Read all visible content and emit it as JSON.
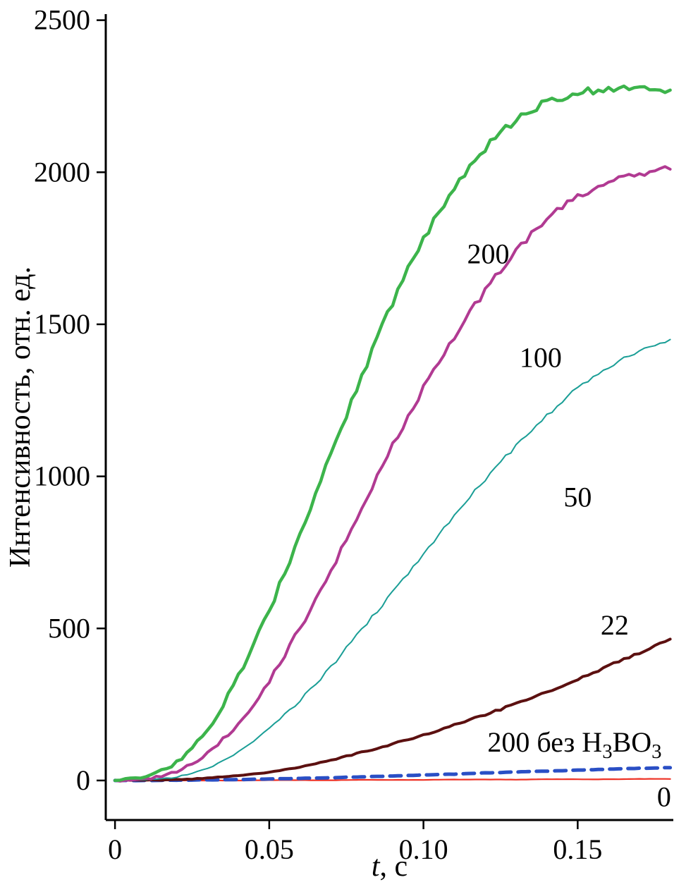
{
  "figure": {
    "background": "#ffffff",
    "axis_color": "#000000"
  },
  "chart_data": {
    "type": "line",
    "title": "",
    "xlabel": "t, с",
    "xlabel_parts": [
      {
        "t": "t",
        "italic": true
      },
      {
        "t": ", с"
      }
    ],
    "ylabel": "Интенсивность, отн. ед.",
    "xlim": [
      -0.003,
      0.181
    ],
    "ylim": [
      -130,
      2520
    ],
    "xticks": [
      0,
      0.05,
      0.1,
      0.15
    ],
    "xtick_labels": [
      "0",
      "0.05",
      "0.10",
      "0.15"
    ],
    "yticks": [
      0,
      500,
      1000,
      1500,
      2000,
      2500
    ],
    "ytick_labels": [
      "0",
      "500",
      "1000",
      "1500",
      "2000",
      "2500"
    ],
    "grid": false,
    "legend_position": "inline-labels",
    "x": [
      0,
      0.01,
      0.02,
      0.03,
      0.04,
      0.05,
      0.06,
      0.07,
      0.08,
      0.09,
      0.1,
      0.11,
      0.12,
      0.13,
      0.14,
      0.15,
      0.16,
      0.17,
      0.18
    ],
    "series": [
      {
        "name": "0",
        "color": "#ee3124",
        "width": 2.2,
        "dash": null,
        "noise": 1,
        "y": [
          0,
          0,
          0,
          0,
          0,
          1,
          1,
          1,
          2,
          2,
          2,
          3,
          3,
          3,
          4,
          4,
          4,
          5,
          5
        ]
      },
      {
        "name": "200 без H3BO3",
        "color": "#2a4fc5",
        "width": 5,
        "dash": "16 10",
        "noise": 1.5,
        "y": [
          0,
          0,
          1,
          2,
          3,
          5,
          7,
          9,
          12,
          15,
          18,
          21,
          25,
          28,
          31,
          34,
          37,
          40,
          42
        ]
      },
      {
        "name": "22",
        "color": "#5c1010",
        "width": 4,
        "dash": null,
        "noise": 4,
        "y": [
          0,
          1,
          3,
          8,
          16,
          28,
          45,
          67,
          93,
          120,
          150,
          182,
          216,
          252,
          291,
          332,
          376,
          420,
          465
        ]
      },
      {
        "name": "50",
        "color": "#1a9e96",
        "width": 2,
        "dash": null,
        "noise": 6,
        "y": [
          0,
          3,
          12,
          40,
          95,
          170,
          265,
          375,
          495,
          620,
          745,
          870,
          990,
          1100,
          1200,
          1290,
          1360,
          1410,
          1450
        ]
      },
      {
        "name": "100",
        "color": "#b13a92",
        "width": 4,
        "dash": null,
        "noise": 10,
        "y": [
          0,
          5,
          30,
          90,
          190,
          330,
          500,
          690,
          895,
          1100,
          1290,
          1460,
          1610,
          1740,
          1845,
          1920,
          1965,
          1995,
          2010
        ]
      },
      {
        "name": "200",
        "color": "#3cb44b",
        "width": 4.5,
        "dash": null,
        "noise": 12,
        "y": [
          0,
          15,
          60,
          170,
          340,
          560,
          810,
          1070,
          1330,
          1570,
          1780,
          1950,
          2080,
          2170,
          2230,
          2260,
          2275,
          2280,
          2270
        ]
      }
    ],
    "annotations": [
      {
        "name": "200",
        "x": 0.121,
        "y": 1700,
        "parts": [
          {
            "t": "200"
          }
        ]
      },
      {
        "name": "100",
        "x": 0.138,
        "y": 1360,
        "parts": [
          {
            "t": "100"
          }
        ]
      },
      {
        "name": "50",
        "x": 0.15,
        "y": 900,
        "parts": [
          {
            "t": "50"
          }
        ]
      },
      {
        "name": "22",
        "x": 0.162,
        "y": 480,
        "parts": [
          {
            "t": "22"
          }
        ]
      },
      {
        "name": "200-bez-H3BO3",
        "x": 0.149,
        "y": 95,
        "parts": [
          {
            "t": "200 без H"
          },
          {
            "t": "3",
            "sub": true
          },
          {
            "t": "BO"
          },
          {
            "t": "3",
            "sub": true
          }
        ]
      },
      {
        "name": "0",
        "x": 0.178,
        "y": -85,
        "parts": [
          {
            "t": "0"
          }
        ]
      }
    ]
  }
}
